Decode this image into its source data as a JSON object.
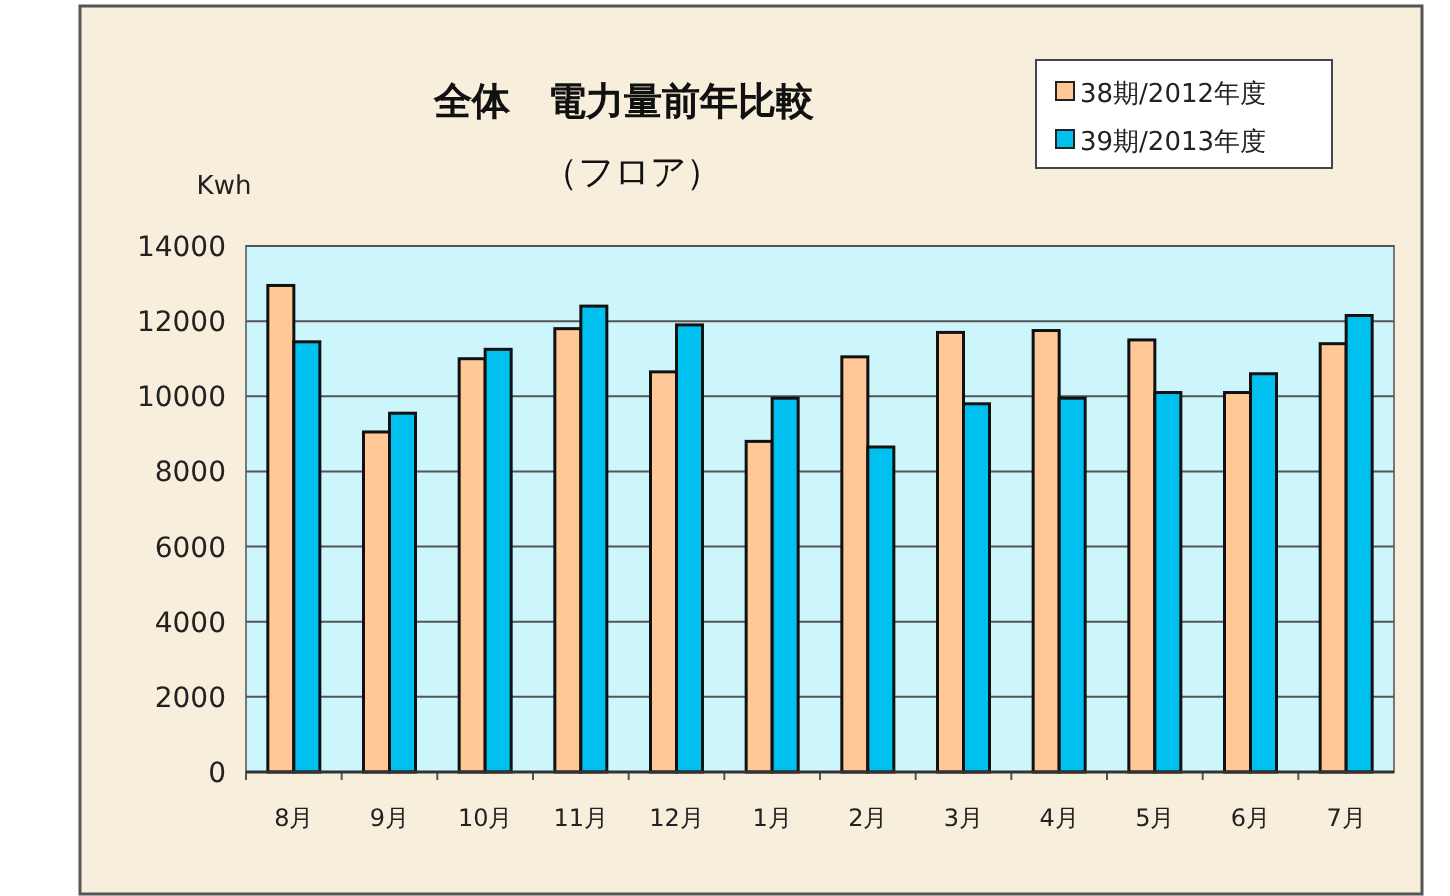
{
  "chart_data": {
    "type": "bar",
    "title": "全体　電力量前年比較",
    "subtitle": "（フロア）",
    "ylabel": "Kwh",
    "categories": [
      "8月",
      "9月",
      "10月",
      "11月",
      "12月",
      "1月",
      "2月",
      "3月",
      "4月",
      "5月",
      "6月",
      "7月"
    ],
    "series": [
      {
        "name": "38期/2012年度",
        "color": "#ffc896",
        "values": [
          12950,
          9050,
          11000,
          11800,
          10650,
          8800,
          11050,
          11700,
          11750,
          11500,
          10100,
          11400
        ]
      },
      {
        "name": "39期/2013年度",
        "color": "#00c0f0",
        "values": [
          11450,
          9550,
          11250,
          12400,
          11900,
          9950,
          8650,
          9800,
          9950,
          10100,
          10600,
          12150
        ]
      }
    ],
    "ylim": [
      0,
      14000
    ],
    "yticks": [
      0,
      2000,
      4000,
      6000,
      8000,
      10000,
      12000,
      14000
    ],
    "grid": "y",
    "legend": "top right"
  }
}
